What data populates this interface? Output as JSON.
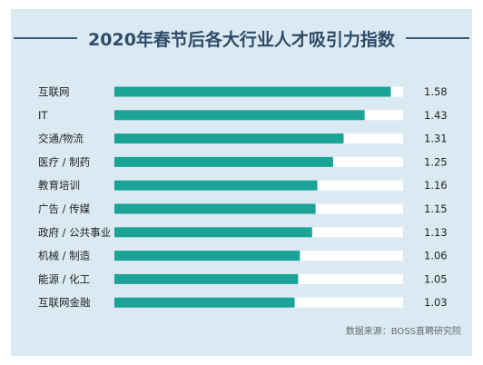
{
  "chart_data": {
    "type": "bar",
    "orientation": "horizontal",
    "title": "2020年春节后各大行业人才吸引力指数",
    "categories": [
      "互联网",
      "IT",
      "交通/物流",
      "医疗 / 制药",
      "教育培训",
      "广告 / 传媒",
      "政府 / 公共事业",
      "机械 / 制造",
      "能源 / 化工",
      "互联网金融"
    ],
    "values": [
      1.58,
      1.43,
      1.31,
      1.25,
      1.16,
      1.15,
      1.13,
      1.06,
      1.05,
      1.03
    ],
    "value_labels": [
      "1.58",
      "1.43",
      "1.31",
      "1.25",
      "1.16",
      "1.15",
      "1.13",
      "1.06",
      "1.05",
      "1.03"
    ],
    "xlim": [
      0,
      1.65
    ],
    "bar_color": "#1aa396",
    "track_color": "#ffffff",
    "source": "数据来源：BOSS直聘研究院"
  }
}
